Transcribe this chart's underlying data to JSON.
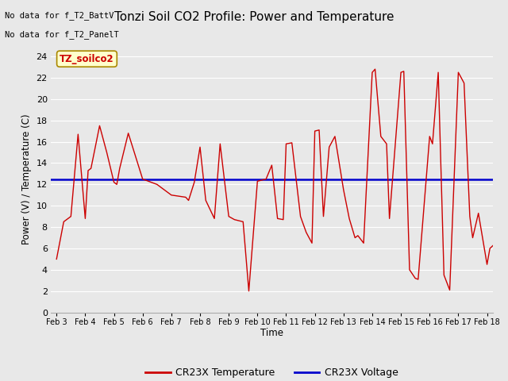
{
  "title": "Tonzi Soil CO2 Profile: Power and Temperature",
  "ylabel": "Power (V) / Temperature (C)",
  "xlabel": "Time",
  "ylim": [
    0,
    25
  ],
  "yticks": [
    0,
    2,
    4,
    6,
    8,
    10,
    12,
    14,
    16,
    18,
    20,
    22,
    24
  ],
  "voltage_value": 12.5,
  "voltage_color": "#0000cc",
  "temp_color": "#cc0000",
  "fig_bg": "#e8e8e8",
  "plot_bg": "#e8e8e8",
  "grid_color": "#ffffff",
  "no_data_text1": "No data for f_T2_BattV",
  "no_data_text2": "No data for f_T2_PanelT",
  "legend_label_box": "TZ_soilco2",
  "legend_temp": "CR23X Temperature",
  "legend_volt": "CR23X Voltage",
  "xtick_labels": [
    "Feb 3",
    "Feb 4",
    "Feb 5",
    "Feb 6",
    "Feb 7",
    "Feb 8",
    "Feb 9",
    "Feb 10",
    "Feb 11",
    "Feb 12",
    "Feb 13",
    "Feb 14",
    "Feb 15",
    "Feb 16",
    "Feb 17",
    "Feb 18"
  ],
  "temp_x": [
    0.0,
    0.25,
    0.5,
    0.75,
    1.0,
    1.1,
    1.2,
    1.5,
    1.75,
    2.0,
    2.1,
    2.2,
    2.5,
    3.0,
    3.5,
    4.0,
    4.5,
    4.6,
    4.8,
    5.0,
    5.2,
    5.5,
    5.7,
    6.0,
    6.2,
    6.5,
    6.7,
    7.0,
    7.15,
    7.3,
    7.5,
    7.7,
    7.9,
    8.0,
    8.2,
    8.5,
    8.7,
    8.9,
    9.0,
    9.15,
    9.3,
    9.5,
    9.7,
    10.0,
    10.2,
    10.4,
    10.5,
    10.7,
    11.0,
    11.1,
    11.3,
    11.5,
    11.6,
    12.0,
    12.1,
    12.3,
    12.5,
    12.6,
    13.0,
    13.1,
    13.3,
    13.5,
    13.7,
    14.0,
    14.2,
    14.4,
    14.5,
    14.7,
    15.0,
    15.1,
    15.3,
    15.5
  ],
  "temp_y": [
    5.0,
    8.5,
    9.0,
    16.7,
    8.8,
    13.3,
    13.5,
    17.5,
    15.0,
    12.2,
    12.0,
    13.5,
    16.8,
    12.5,
    12.0,
    11.0,
    10.8,
    10.5,
    12.2,
    15.5,
    10.5,
    8.8,
    15.8,
    9.0,
    8.7,
    8.5,
    2.0,
    12.3,
    12.4,
    12.5,
    13.8,
    8.8,
    8.7,
    15.8,
    15.9,
    9.0,
    7.5,
    6.5,
    17.0,
    17.1,
    9.0,
    15.5,
    16.5,
    11.5,
    8.8,
    7.0,
    7.2,
    6.5,
    22.5,
    22.8,
    16.5,
    15.8,
    8.8,
    22.5,
    22.6,
    4.0,
    3.2,
    3.1,
    16.5,
    15.8,
    22.5,
    3.5,
    2.1,
    22.5,
    21.5,
    9.0,
    7.0,
    9.3,
    4.5,
    6.0,
    6.5,
    7.0
  ]
}
